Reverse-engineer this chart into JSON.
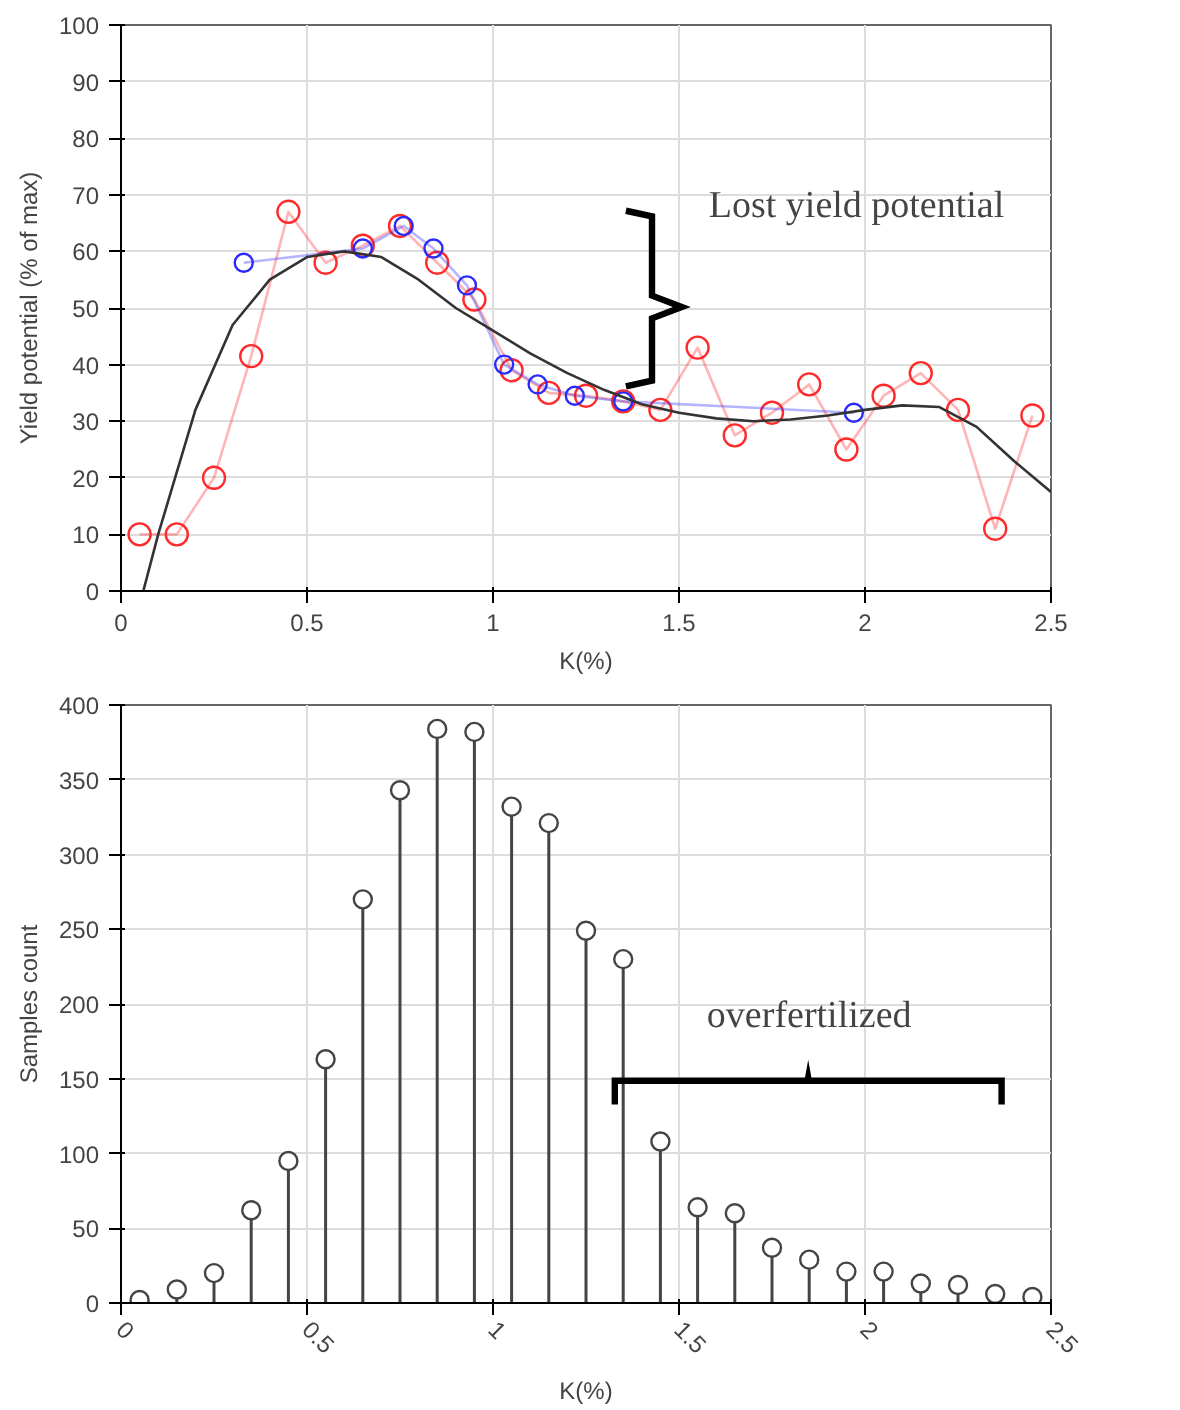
{
  "chart_data": [
    {
      "type": "line",
      "xlabel": "K(%)",
      "ylabel": "Yield potential (% of max)",
      "xlim": [
        0,
        2.5
      ],
      "ylim": [
        0,
        100
      ],
      "xticks": [
        0,
        0.5,
        1,
        1.5,
        2,
        2.5
      ],
      "yticks": [
        0,
        10,
        20,
        30,
        40,
        50,
        60,
        70,
        80,
        90,
        100
      ],
      "grid": true,
      "annotations": [
        "Lost yield potential"
      ],
      "series": [
        {
          "color": "#ff2a2a",
          "marker": "circle",
          "x": [
            0.05,
            0.15,
            0.25,
            0.35,
            0.45,
            0.55,
            0.65,
            0.75,
            0.85,
            0.95,
            1.05,
            1.15,
            1.25,
            1.35,
            1.45,
            1.55,
            1.65,
            1.75,
            1.85,
            1.95,
            2.05,
            2.15,
            2.25,
            2.35,
            2.45
          ],
          "values": [
            10,
            10,
            20,
            41.5,
            67,
            58,
            61,
            64.5,
            58,
            51.5,
            39,
            35,
            34.5,
            33.5,
            32,
            43,
            27.5,
            31.5,
            36.5,
            25,
            34.5,
            38.5,
            32,
            11,
            31
          ]
        },
        {
          "color": "#2a2aff",
          "marker": "circle",
          "x": [
            0.33,
            0.65,
            0.76,
            0.84,
            0.93,
            1.03,
            1.12,
            1.22,
            1.35,
            1.97
          ],
          "values": [
            58,
            60.5,
            64.5,
            60.5,
            54,
            40,
            36.5,
            34.5,
            33.5,
            31.5
          ]
        },
        {
          "color": "#333333",
          "marker": "none",
          "x": [
            0.06,
            0.1,
            0.2,
            0.3,
            0.4,
            0.5,
            0.6,
            0.7,
            0.8,
            0.9,
            1.0,
            1.1,
            1.2,
            1.3,
            1.4,
            1.5,
            1.6,
            1.7,
            1.8,
            1.9,
            2.0,
            2.1,
            2.2,
            2.3,
            2.4,
            2.5
          ],
          "values": [
            0,
            10,
            32,
            47,
            55,
            59,
            60,
            59,
            55,
            50,
            46,
            42,
            38.5,
            35.5,
            33,
            31.5,
            30.5,
            30,
            30.3,
            31,
            32,
            32.8,
            32.5,
            29,
            23,
            17.5
          ]
        }
      ]
    },
    {
      "type": "lollipop",
      "xlabel": "K(%)",
      "ylabel": "Samples count",
      "xlim": [
        0,
        2.5
      ],
      "ylim": [
        0,
        400
      ],
      "xticks": [
        0,
        0.5,
        1,
        1.5,
        2,
        2.5
      ],
      "yticks": [
        0,
        50,
        100,
        150,
        200,
        250,
        300,
        350,
        400
      ],
      "grid": true,
      "marker": "circle",
      "annotations": [
        "overfertilized"
      ],
      "x": [
        0.05,
        0.15,
        0.25,
        0.35,
        0.45,
        0.55,
        0.65,
        0.75,
        0.85,
        0.95,
        1.05,
        1.15,
        1.25,
        1.35,
        1.45,
        1.55,
        1.65,
        1.75,
        1.85,
        1.95,
        2.05,
        2.15,
        2.25,
        2.35,
        2.45
      ],
      "values": [
        2,
        9,
        20,
        62,
        95,
        163,
        270,
        343,
        384,
        382,
        332,
        321,
        249,
        230,
        108,
        64,
        60,
        37,
        29,
        21,
        21,
        13,
        12,
        6,
        4
      ],
      "color": "#444444"
    }
  ]
}
